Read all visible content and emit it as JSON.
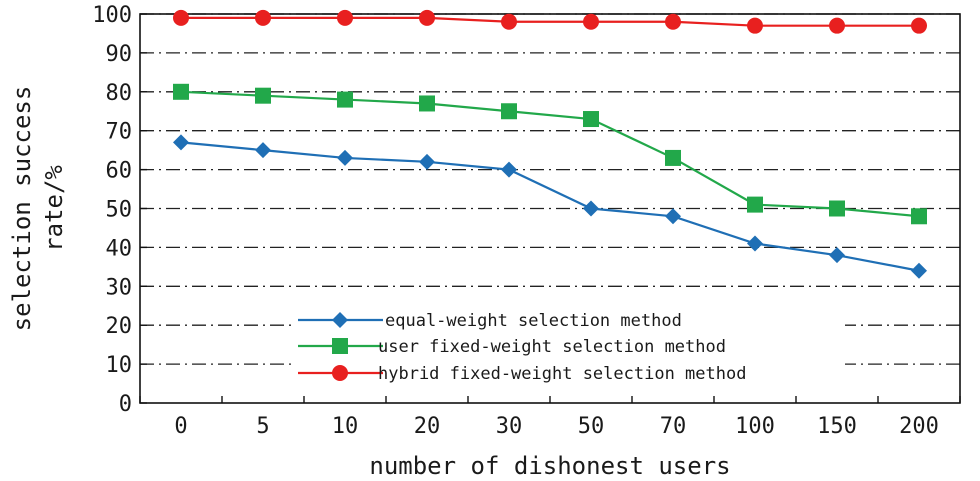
{
  "chart_data": {
    "type": "line",
    "categories": [
      "0",
      "5",
      "10",
      "20",
      "30",
      "50",
      "70",
      "100",
      "150",
      "200"
    ],
    "xlabel": "number of dishonest users",
    "ylabel_line1": "selection success",
    "ylabel_line2": "rate/%",
    "ylim": [
      0,
      100
    ],
    "yticks": [
      0,
      10,
      20,
      30,
      40,
      50,
      60,
      70,
      80,
      90,
      100
    ],
    "grid": true,
    "legend_position": "bottom-center",
    "series": [
      {
        "name": "equal-weight selection method",
        "color": "#1f6fb5",
        "marker": "diamond",
        "values": [
          67,
          65,
          63,
          62,
          60,
          50,
          48,
          41,
          38,
          34
        ]
      },
      {
        "name": "user fixed-weight selection method",
        "color": "#22a84a",
        "marker": "square",
        "values": [
          80,
          79,
          78,
          77,
          75,
          73,
          63,
          51,
          50,
          48
        ]
      },
      {
        "name": "hybrid fixed-weight selection method",
        "color": "#e8201f",
        "marker": "circle",
        "values": [
          99,
          99,
          99,
          99,
          98,
          98,
          98,
          97,
          97,
          97
        ]
      }
    ]
  }
}
